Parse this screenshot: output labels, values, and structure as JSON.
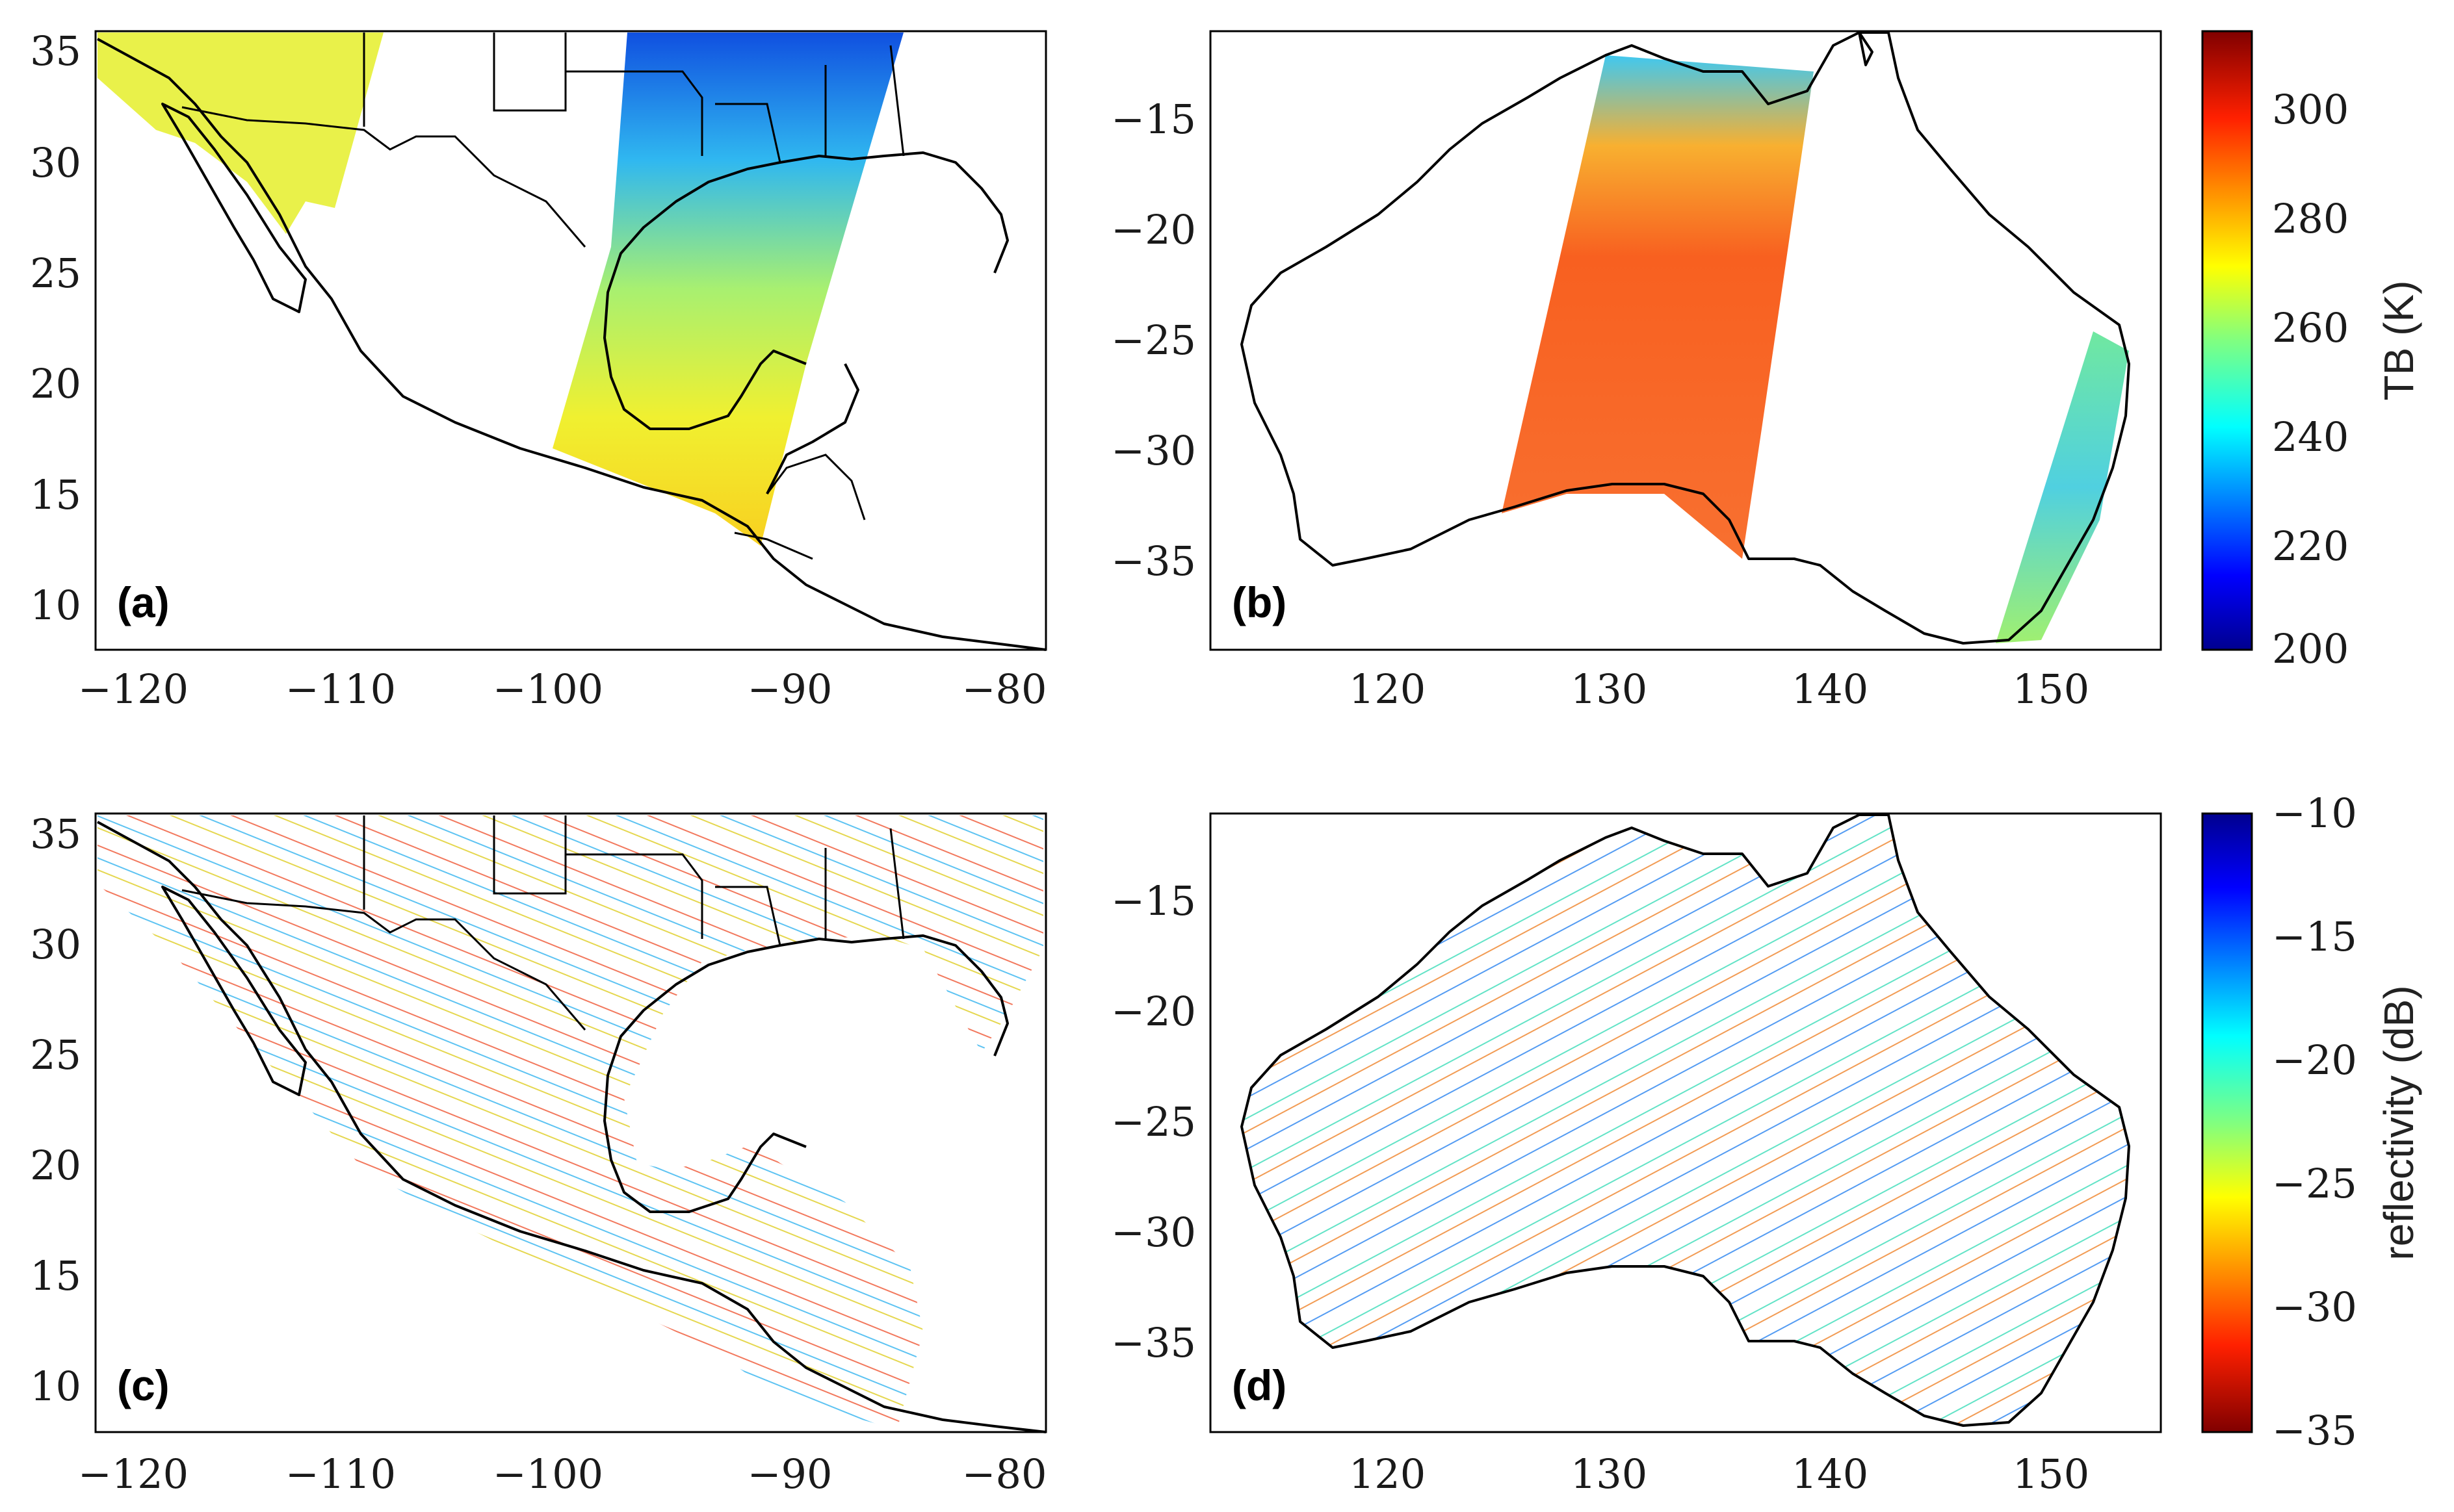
{
  "panels": {
    "a": {
      "label": "(a)",
      "xticks": [
        "−120",
        "−110",
        "−100",
        "−90",
        "−80"
      ],
      "yticks": [
        "35",
        "30",
        "25",
        "20",
        "15",
        "10"
      ]
    },
    "b": {
      "label": "(b)",
      "xticks": [
        "120",
        "130",
        "140",
        "150"
      ],
      "yticks": [
        "−15",
        "−20",
        "−25",
        "−30",
        "−35"
      ]
    },
    "c": {
      "label": "(c)",
      "xticks": [
        "−120",
        "−110",
        "−100",
        "−90",
        "−80"
      ],
      "yticks": [
        "35",
        "30",
        "25",
        "20",
        "15",
        "10"
      ]
    },
    "d": {
      "label": "(d)",
      "xticks": [
        "120",
        "130",
        "140",
        "150"
      ],
      "yticks": [
        "−15",
        "−20",
        "−25",
        "−30",
        "−35"
      ]
    }
  },
  "colorbar_top": {
    "label": "TB (K)",
    "ticks": [
      "300",
      "280",
      "260",
      "240",
      "220",
      "200"
    ],
    "range": [
      200,
      313
    ]
  },
  "colorbar_bottom": {
    "label": "reflectivity (dB)",
    "ticks": [
      "−10",
      "−15",
      "−20",
      "−25",
      "−30",
      "−35"
    ],
    "range": [
      -35,
      -10
    ]
  },
  "colors": {
    "jet_dark_blue": "#00008f",
    "jet_blue": "#0060ff",
    "jet_cyan": "#10d8f0",
    "jet_green": "#80ff80",
    "jet_yellow": "#f8f020",
    "jet_orange": "#ff8000",
    "jet_red": "#e02000",
    "jet_dark_red": "#800000"
  }
}
